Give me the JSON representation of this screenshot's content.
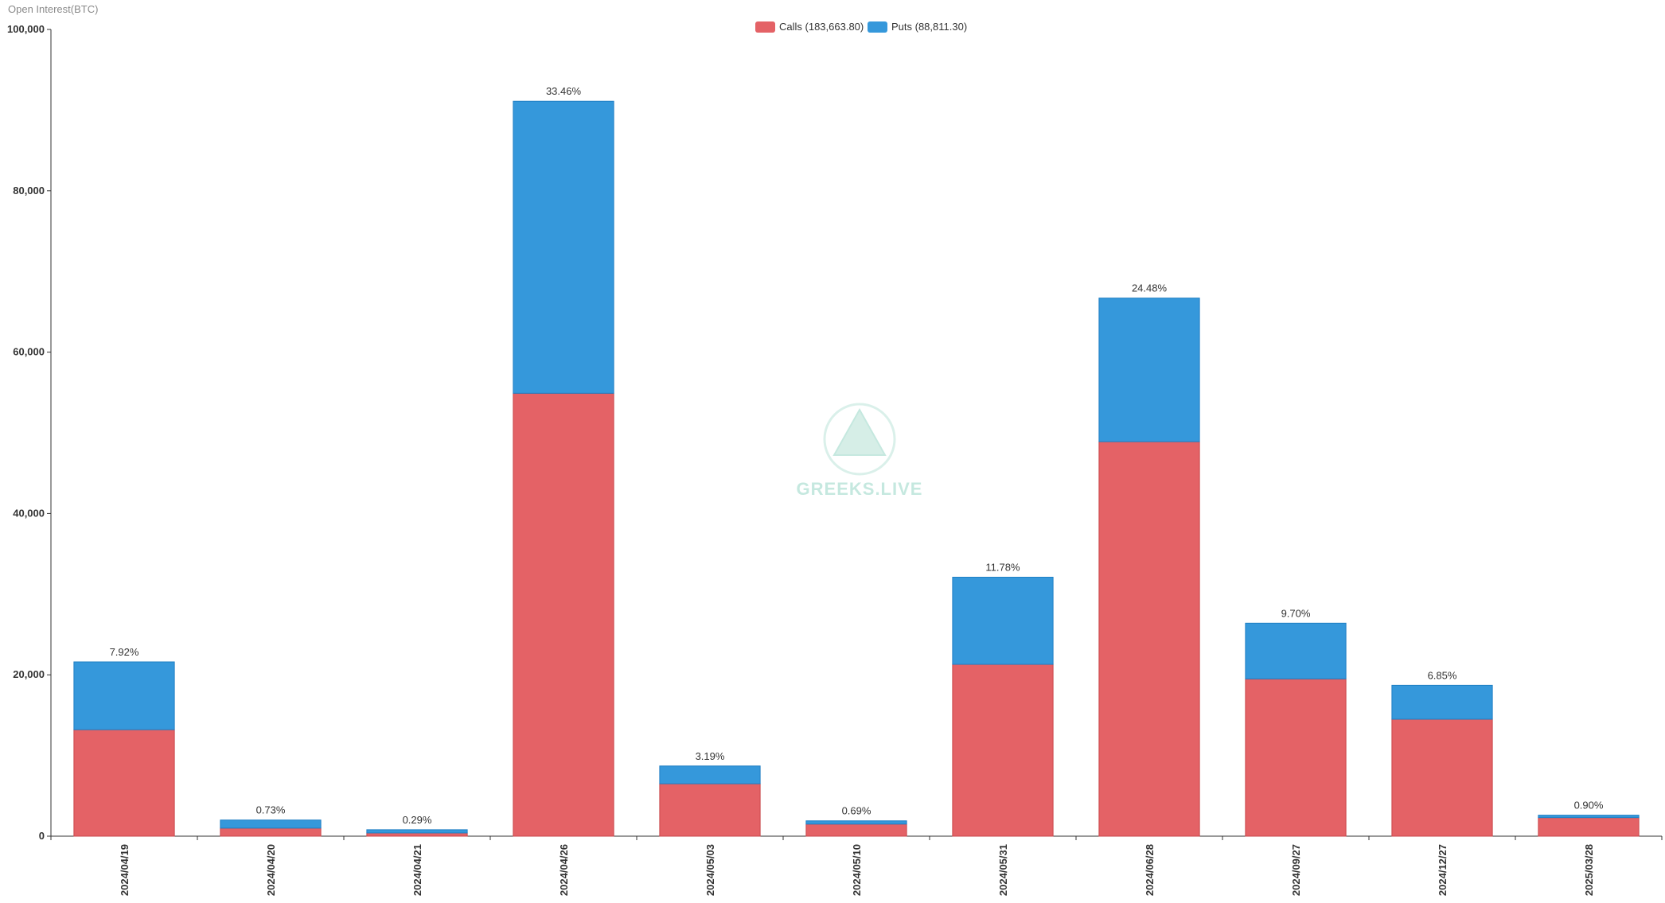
{
  "chart_data": {
    "type": "bar",
    "stacked": true,
    "ylabel": "Open Interest(BTC)",
    "ylim": [
      0,
      100000
    ],
    "yticks": [
      "0",
      "20,000",
      "40,000",
      "60,000",
      "80,000",
      "100,000"
    ],
    "ytick_values": [
      0,
      20000,
      40000,
      60000,
      80000,
      100000
    ],
    "categories": [
      "2024/04/19",
      "2024/04/20",
      "2024/04/21",
      "2024/04/26",
      "2024/05/03",
      "2024/05/10",
      "2024/05/31",
      "2024/06/28",
      "2024/09/27",
      "2024/12/27",
      "2025/03/28"
    ],
    "series": [
      {
        "name": "Calls (183,663.80)",
        "color": "#e46266",
        "values": [
          13200,
          1000,
          400,
          54900,
          6500,
          1500,
          21300,
          48900,
          19500,
          14500,
          2300
        ]
      },
      {
        "name": "Puts (88,811.30)",
        "color": "#3598db",
        "values": [
          8400,
          1000,
          400,
          36200,
          2200,
          400,
          10800,
          17800,
          6900,
          4200,
          300
        ]
      }
    ],
    "bar_labels": [
      "7.92%",
      "0.73%",
      "0.29%",
      "33.46%",
      "3.19%",
      "0.69%",
      "11.78%",
      "24.48%",
      "9.70%",
      "6.85%",
      "0.90%"
    ],
    "legend_position": "top-center",
    "grid": false
  },
  "watermark": {
    "text": "GREEKS.LIVE",
    "color": "#bfe6dc"
  }
}
